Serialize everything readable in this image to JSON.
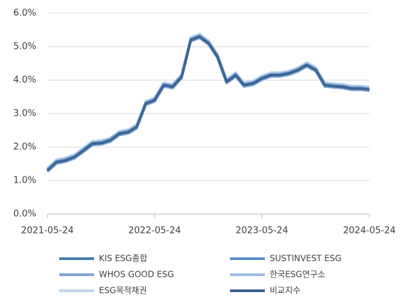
{
  "chart_data": {
    "type": "line",
    "x": [
      "2021-05-24",
      "2021-06-24",
      "2021-07-24",
      "2021-08-24",
      "2021-09-24",
      "2021-10-24",
      "2021-11-24",
      "2021-12-24",
      "2022-01-24",
      "2022-02-24",
      "2022-03-24",
      "2022-04-24",
      "2022-05-24",
      "2022-06-24",
      "2022-07-24",
      "2022-08-24",
      "2022-09-24",
      "2022-10-24",
      "2022-11-24",
      "2022-12-24",
      "2023-01-24",
      "2023-02-24",
      "2023-03-24",
      "2023-04-24",
      "2023-05-24",
      "2023-06-24",
      "2023-07-24",
      "2023-08-24",
      "2023-09-24",
      "2023-10-24",
      "2023-11-24",
      "2023-12-24",
      "2024-01-24",
      "2024-02-24",
      "2024-03-24",
      "2024-04-24",
      "2024-05-24"
    ],
    "series": [
      {
        "name": "ESG목적채권",
        "color": "#c5d6ee",
        "values": [
          1.38,
          1.63,
          1.68,
          1.78,
          1.98,
          2.18,
          2.2,
          2.28,
          2.48,
          2.53,
          2.68,
          3.38,
          3.48,
          3.93,
          3.88,
          4.18,
          5.28,
          5.38,
          5.18,
          4.78,
          4.03,
          4.23,
          3.93,
          3.98,
          4.13,
          4.23,
          4.23,
          4.28,
          4.38,
          4.53,
          4.38,
          3.93,
          3.9,
          3.88,
          3.83,
          3.83,
          3.8
        ]
      },
      {
        "name": "한국ESG연구소",
        "color": "#a3bde6",
        "values": [
          1.35,
          1.6,
          1.65,
          1.75,
          1.95,
          2.15,
          2.17,
          2.25,
          2.45,
          2.5,
          2.65,
          3.35,
          3.45,
          3.9,
          3.85,
          4.15,
          5.25,
          5.35,
          5.15,
          4.75,
          4.0,
          4.2,
          3.9,
          3.95,
          4.1,
          4.2,
          4.2,
          4.25,
          4.35,
          4.5,
          4.35,
          3.9,
          3.87,
          3.85,
          3.8,
          3.8,
          3.77
        ]
      },
      {
        "name": "WHOS GOOD ESG",
        "color": "#7fa6d8",
        "values": [
          1.26,
          1.51,
          1.56,
          1.66,
          1.86,
          2.06,
          2.08,
          2.16,
          2.36,
          2.41,
          2.56,
          3.26,
          3.36,
          3.81,
          3.76,
          4.06,
          5.16,
          5.26,
          5.06,
          4.66,
          3.91,
          4.11,
          3.81,
          3.86,
          4.01,
          4.11,
          4.11,
          4.16,
          4.26,
          4.41,
          4.26,
          3.81,
          3.78,
          3.76,
          3.71,
          3.71,
          3.68
        ]
      },
      {
        "name": "SUSTINVEST ESG",
        "color": "#5a93c8",
        "values": [
          1.32,
          1.57,
          1.62,
          1.72,
          1.92,
          2.12,
          2.14,
          2.22,
          2.42,
          2.47,
          2.62,
          3.32,
          3.42,
          3.87,
          3.82,
          4.12,
          5.22,
          5.32,
          5.12,
          4.72,
          3.97,
          4.17,
          3.87,
          3.92,
          4.07,
          4.17,
          4.17,
          4.22,
          4.32,
          4.47,
          4.32,
          3.87,
          3.84,
          3.82,
          3.77,
          3.77,
          3.74
        ]
      },
      {
        "name": "KIS ESG종합",
        "color": "#4a7eb0",
        "values": [
          1.3,
          1.55,
          1.6,
          1.7,
          1.9,
          2.1,
          2.12,
          2.2,
          2.4,
          2.45,
          2.6,
          3.3,
          3.4,
          3.85,
          3.8,
          4.1,
          5.2,
          5.3,
          5.1,
          4.7,
          3.95,
          4.15,
          3.85,
          3.9,
          4.05,
          4.15,
          4.15,
          4.2,
          4.3,
          4.45,
          4.3,
          3.85,
          3.82,
          3.8,
          3.75,
          3.75,
          3.72
        ]
      },
      {
        "name": "비교지수",
        "color": "#3d6592",
        "values": [
          1.3,
          1.55,
          1.6,
          1.7,
          1.9,
          2.1,
          2.12,
          2.2,
          2.4,
          2.45,
          2.6,
          3.3,
          3.4,
          3.85,
          3.8,
          4.1,
          5.2,
          5.3,
          5.1,
          4.7,
          3.95,
          4.15,
          3.85,
          3.9,
          4.05,
          4.15,
          4.15,
          4.2,
          4.3,
          4.45,
          4.3,
          3.85,
          3.82,
          3.8,
          3.75,
          3.75,
          3.72
        ]
      }
    ],
    "xlim": [
      "2021-05-24",
      "2024-05-24"
    ],
    "xticks": [
      "2021-05-24",
      "2022-05-24",
      "2023-05-24",
      "2024-05-24"
    ],
    "ylim": [
      0,
      6
    ],
    "yticks": [
      {
        "value": 0,
        "label": "0.0%"
      },
      {
        "value": 1,
        "label": "1.0%"
      },
      {
        "value": 2,
        "label": "2.0%"
      },
      {
        "value": 3,
        "label": "3.0%"
      },
      {
        "value": 4,
        "label": "4.0%"
      },
      {
        "value": 5,
        "label": "5.0%"
      },
      {
        "value": 6,
        "label": "6.0%"
      }
    ],
    "grid": true,
    "legend": "bottom"
  }
}
